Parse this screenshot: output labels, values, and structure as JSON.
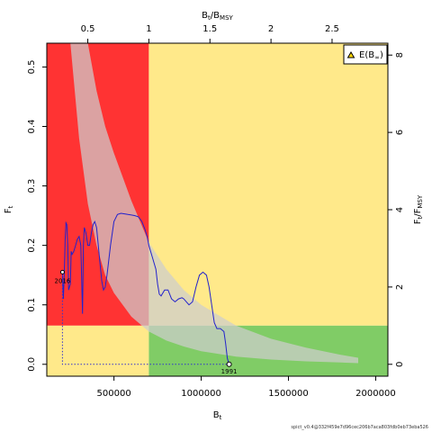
{
  "chart_data": {
    "type": "line",
    "x_axis": {
      "label": "B",
      "label_sub": "t",
      "ticks": [
        500000,
        1000000,
        1500000,
        2000000
      ],
      "tick_labels": [
        "500000",
        "1000000",
        "1500000",
        "2000000"
      ],
      "range": [
        115000,
        2070000
      ]
    },
    "y_axis": {
      "label": "F",
      "label_sub": "t",
      "ticks": [
        0.0,
        0.1,
        0.2,
        0.3,
        0.4,
        0.5
      ],
      "tick_labels": [
        "0.0",
        "0.1",
        "0.2",
        "0.3",
        "0.4",
        "0.5"
      ],
      "range": [
        -0.02,
        0.54
      ]
    },
    "top_axis": {
      "label": "B",
      "label_sub": "t",
      "label_over": "B",
      "label_over_sub": "MSY",
      "ticks": [
        0.5,
        1,
        1.5,
        2,
        2.5
      ],
      "tick_labels": [
        "0.5",
        "1",
        "1.5",
        "2",
        "2.5"
      ]
    },
    "right_axis": {
      "label": "F",
      "label_sub": "t",
      "label_over": "F",
      "label_over_sub": "MSY",
      "ticks": [
        0,
        2,
        4,
        6,
        8
      ],
      "tick_labels": [
        "0",
        "2",
        "4",
        "6",
        "8"
      ]
    },
    "reference_points": {
      "BMSY": 700000,
      "FMSY": 0.065
    },
    "zone_colors": {
      "red": "#ff3333",
      "yellow": "#ffe98a",
      "green": "#80cc66",
      "ci_band": "rgba(205,205,205,0.72)",
      "line": "#2222cc"
    },
    "ci_band": {
      "x": [
        250000,
        300000,
        350000,
        400000,
        450000,
        500000,
        600000,
        700000,
        800000,
        900000,
        1000000,
        1200000,
        1400000,
        1600000,
        1800000,
        1900000
      ],
      "upper": [
        0.54,
        0.54,
        0.54,
        0.46,
        0.4,
        0.355,
        0.275,
        0.205,
        0.16,
        0.125,
        0.1,
        0.065,
        0.043,
        0.028,
        0.016,
        0.011
      ],
      "lower": [
        0.54,
        0.38,
        0.27,
        0.2,
        0.15,
        0.12,
        0.08,
        0.055,
        0.04,
        0.03,
        0.022,
        0.013,
        0.008,
        0.005,
        0.003,
        0.002
      ]
    },
    "series": [
      {
        "x": [
          1160000,
          1150000,
          1140000,
          1130000,
          1110000,
          1090000,
          1075000,
          1060000,
          1045000,
          1030000,
          1010000,
          990000,
          970000,
          950000,
          930000,
          915000,
          900000,
          890000,
          870000,
          850000,
          830000,
          810000,
          790000,
          770000,
          760000,
          750000,
          740000,
          720000,
          700000,
          690000,
          680000,
          660000,
          640000,
          620000,
          600000,
          580000,
          560000,
          540000,
          520000,
          500000,
          480000,
          460000,
          450000,
          440000,
          430000,
          420000,
          410000,
          400000,
          390000,
          380000,
          370000,
          360000,
          350000,
          340000,
          330000,
          325000,
          320000,
          310000,
          300000,
          290000,
          280000,
          270000,
          260000,
          255000,
          250000,
          240000,
          235000,
          230000,
          225000,
          220000,
          215000,
          210000,
          205000
        ],
        "y": [
          0.0,
          0.01,
          0.035,
          0.055,
          0.06,
          0.06,
          0.07,
          0.1,
          0.13,
          0.15,
          0.155,
          0.15,
          0.13,
          0.105,
          0.1,
          0.105,
          0.11,
          0.112,
          0.11,
          0.105,
          0.11,
          0.125,
          0.125,
          0.115,
          0.118,
          0.135,
          0.16,
          0.18,
          0.2,
          0.215,
          0.225,
          0.24,
          0.248,
          0.25,
          0.251,
          0.252,
          0.253,
          0.254,
          0.252,
          0.24,
          0.2,
          0.15,
          0.13,
          0.125,
          0.14,
          0.17,
          0.2,
          0.23,
          0.24,
          0.235,
          0.22,
          0.2,
          0.2,
          0.22,
          0.23,
          0.2,
          0.085,
          0.2,
          0.215,
          0.21,
          0.2,
          0.19,
          0.185,
          0.19,
          0.135,
          0.125,
          0.2,
          0.235,
          0.238,
          0.21,
          0.15,
          0.11,
          0.155
        ]
      }
    ],
    "annotations": [
      {
        "text": "1991",
        "x": 1160000,
        "y": 0.0
      },
      {
        "text": "2016",
        "x": 205000,
        "y": 0.155
      }
    ],
    "current_projection": {
      "x": [
        205000,
        205000,
        1160000
      ],
      "y": [
        0.155,
        0.0,
        0.0
      ]
    },
    "legend": {
      "entries": [
        {
          "label": "E(B",
          "label_sub": "∞",
          "label_end": ")"
        }
      ],
      "position": "top-right"
    }
  },
  "footer": "spict_v0.4@332f459e7d96cec206b7aca803fdb0eb73eba526"
}
